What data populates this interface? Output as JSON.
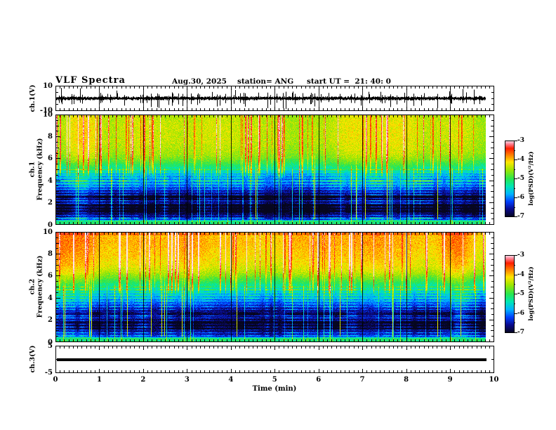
{
  "header": {
    "title": "VLF Spectra",
    "date": "Aug.30, 2025",
    "station": "station= ANG",
    "start_ut": "start UT =  21: 40: 0"
  },
  "axes": {
    "x_label": "Time (min)",
    "x_ticks": [
      0,
      1,
      2,
      3,
      4,
      5,
      6,
      7,
      8,
      9,
      10
    ],
    "x_range_min": [
      0,
      10
    ],
    "data_end_min": 9.8
  },
  "panels": {
    "ch1_wave": {
      "label": "ch.1(V)",
      "ymax": "10",
      "ymin": "-10"
    },
    "spec1": {
      "label_line1": "ch.1",
      "label_line2": "Frequency (kHz)",
      "yticks": [
        0,
        2,
        4,
        6,
        8,
        10
      ]
    },
    "spec2": {
      "label_line1": "ch.2",
      "label_line2": "Frequency (kHz)",
      "yticks": [
        0,
        2,
        4,
        6,
        8,
        10
      ]
    },
    "ch3_wave": {
      "label": "ch.3(V)",
      "ymax": "5",
      "ymin": "-5"
    }
  },
  "colorbar": {
    "ticks": [
      "-3",
      "-4",
      "-5",
      "-6",
      "-7"
    ],
    "tick_values": [
      -3,
      -4,
      -5,
      -6,
      -7
    ],
    "unit": "log(PSD)(V²/Hz)",
    "zlim": [
      -7,
      -3
    ]
  },
  "chart_data": [
    {
      "type": "line",
      "panel": "ch1_waveform",
      "label": "ch.1(V)",
      "xlim": [
        0,
        10
      ],
      "ylim": [
        -10,
        10
      ],
      "data_end_min": 9.8,
      "description": "broadband noise of ~±2 V around 0 with many impulsive spikes, several negative spikes reaching -8 to -10 V",
      "noise_amp": 1.3,
      "spike_rate": 0.1,
      "big_neg_spike_rate": 0.018
    },
    {
      "type": "heatmap",
      "panel": "ch1_spectrogram",
      "ylabel": "Frequency (kHz)",
      "xlim": [
        0,
        10
      ],
      "ylim": [
        0,
        10
      ],
      "zlim": [
        -7,
        -3
      ],
      "zlabel": "log(PSD)(V²/Hz)",
      "data_end_min": 9.8,
      "base_profile": [
        [
          0,
          -5.1
        ],
        [
          0.32,
          -5.3
        ],
        [
          0.5,
          -6.5
        ],
        [
          1.0,
          -6.85
        ],
        [
          1.9,
          -6.9
        ],
        [
          2.1,
          -6.6
        ],
        [
          2.6,
          -6.85
        ],
        [
          3.1,
          -6.45
        ],
        [
          3.6,
          -6.05
        ],
        [
          4.2,
          -5.95
        ],
        [
          4.7,
          -5.7
        ],
        [
          5.1,
          -5.25
        ],
        [
          5.6,
          -4.85
        ],
        [
          6.1,
          -4.55
        ],
        [
          6.6,
          -4.4
        ],
        [
          7.5,
          -4.3
        ],
        [
          9.0,
          -4.28
        ],
        [
          10,
          -4.35
        ]
      ],
      "horizontal_lines_khz": [
        0.35,
        0.6,
        0.85,
        1.1,
        1.35,
        1.6,
        1.9,
        2.15,
        2.4,
        2.7,
        2.95,
        3.2,
        3.45,
        3.7,
        3.95,
        4.2,
        4.5,
        4.75,
        5.0
      ],
      "strong_lines_khz": [
        0.6,
        3.95
      ],
      "dark_bands_khz": [
        [
          1.05,
          1.8
        ],
        [
          2.2,
          2.65
        ]
      ],
      "bottom_band_khz": [
        0,
        0.35
      ],
      "top_boost": 0
    },
    {
      "type": "heatmap",
      "panel": "ch2_spectrogram",
      "ylabel": "Frequency (kHz)",
      "xlim": [
        0,
        10
      ],
      "ylim": [
        0,
        10
      ],
      "zlim": [
        -7,
        -3
      ],
      "zlabel": "log(PSD)(V²/Hz)",
      "data_end_min": 9.8,
      "base_profile": [
        [
          0,
          -5.0
        ],
        [
          0.32,
          -5.2
        ],
        [
          0.5,
          -6.4
        ],
        [
          1.1,
          -6.75
        ],
        [
          2.0,
          -6.8
        ],
        [
          2.4,
          -6.5
        ],
        [
          2.9,
          -6.7
        ],
        [
          3.4,
          -6.25
        ],
        [
          3.9,
          -5.95
        ],
        [
          4.4,
          -5.75
        ],
        [
          4.9,
          -5.4
        ],
        [
          5.4,
          -5.0
        ],
        [
          5.9,
          -4.65
        ],
        [
          6.4,
          -4.35
        ],
        [
          7.0,
          -4.15
        ],
        [
          8.0,
          -4.0
        ],
        [
          9.2,
          -3.9
        ],
        [
          10,
          -3.95
        ]
      ],
      "horizontal_lines_khz": [
        0.35,
        0.6,
        0.85,
        1.1,
        1.35,
        1.6,
        1.9,
        2.15,
        2.4,
        2.7,
        2.95,
        3.2,
        3.45,
        3.7,
        3.95,
        4.2,
        4.5,
        4.75,
        5.0
      ],
      "strong_lines_khz": [
        0.9,
        1.25
      ],
      "dark_bands_khz": [
        [
          1.1,
          1.9
        ],
        [
          2.3,
          2.75
        ]
      ],
      "bottom_band_khz": [
        0,
        0.35
      ],
      "top_boost": 0.25
    },
    {
      "type": "line",
      "panel": "ch3_waveform",
      "label": "ch.3(V)",
      "xlim": [
        0,
        10
      ],
      "ylim": [
        -5,
        5
      ],
      "data_end_min": 9.8,
      "description": "constant flat thick line at 0 V",
      "value": 0
    }
  ],
  "colormap_stops": [
    [
      0.0,
      "#06061e"
    ],
    [
      0.1,
      "#0a0a8c"
    ],
    [
      0.2,
      "#0040ff"
    ],
    [
      0.3,
      "#00b4ff"
    ],
    [
      0.4,
      "#00e6b4"
    ],
    [
      0.5,
      "#28e650"
    ],
    [
      0.62,
      "#a0e600"
    ],
    [
      0.72,
      "#ffe600"
    ],
    [
      0.82,
      "#ff7800"
    ],
    [
      0.9,
      "#ff1e00"
    ],
    [
      0.96,
      "#ff8296"
    ],
    [
      1.0,
      "#ffe1eb"
    ]
  ]
}
